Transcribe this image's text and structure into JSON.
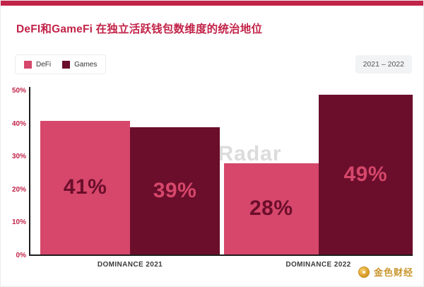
{
  "header": {
    "title": "DeFI和GameFi 在独立活跃钱包数维度的统治地位",
    "period_badge": "2021 – 2022"
  },
  "legend": {
    "items": [
      {
        "label": "DeFi",
        "color": "#d6476b"
      },
      {
        "label": "Games",
        "color": "#6b0e2b"
      }
    ]
  },
  "watermark": "DappRadar",
  "footer": {
    "brand": "金色财经"
  },
  "colors": {
    "accent": "#c22348",
    "defi": "#d6476b",
    "games": "#6b0e2b",
    "axis": "#1d1d1d"
  },
  "chart_data": {
    "type": "bar",
    "categories": [
      "DOMINANCE 2021",
      "DOMINANCE 2022"
    ],
    "series": [
      {
        "name": "DeFi",
        "values": [
          41,
          28
        ],
        "color": "#d6476b",
        "label_color": "#6b0e2b"
      },
      {
        "name": "Games",
        "values": [
          39,
          49
        ],
        "color": "#6b0e2b",
        "label_color": "#d6476b"
      }
    ],
    "value_suffix": "%",
    "ylim": [
      0,
      50
    ],
    "yticks": [
      50,
      40,
      30,
      20,
      10,
      0
    ],
    "ytick_suffix": "%",
    "grid": false,
    "legend_position": "top-left"
  }
}
